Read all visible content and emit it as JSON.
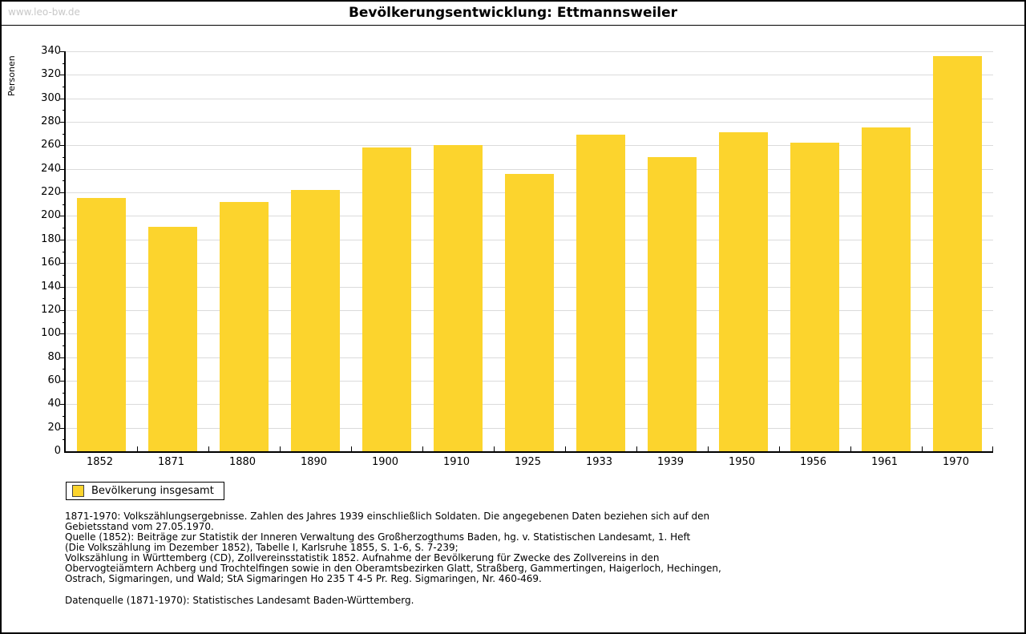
{
  "header": {
    "watermark": "www.leo-bw.de",
    "title": "Bevölkerungsentwicklung: Ettmannsweiler"
  },
  "chart_data": {
    "type": "bar",
    "title": "Bevölkerungsentwicklung: Ettmannsweiler",
    "ylabel": "Personen",
    "xlabel": "",
    "categories": [
      "1852",
      "1871",
      "1880",
      "1890",
      "1900",
      "1910",
      "1925",
      "1933",
      "1939",
      "1950",
      "1956",
      "1961",
      "1970"
    ],
    "values": [
      215,
      191,
      212,
      222,
      258,
      260,
      236,
      269,
      250,
      271,
      262,
      275,
      336
    ],
    "ylim": [
      0,
      340
    ],
    "ytick_step": 20,
    "y_minor_step": 10,
    "grid": true,
    "legend_position": "bottom-left",
    "bar_color": "#FCD42D",
    "gridline_color": "#dbdbdb",
    "legend": [
      "Bevölkerung insgesamt"
    ]
  },
  "legend": {
    "label": "Bevölkerung insgesamt",
    "swatch_color": "#FCD42D"
  },
  "footnotes": {
    "lines": [
      "1871-1970: Volkszählungsergebnisse. Zahlen des Jahres 1939 einschließlich Soldaten. Die angegebenen Daten beziehen sich auf den",
      "Gebietsstand vom 27.05.1970.",
      "Quelle (1852): Beiträge zur Statistik der Inneren Verwaltung des Großherzogthums Baden, hg. v. Statistischen Landesamt, 1. Heft",
      "(Die Volkszählung im Dezember 1852), Tabelle I, Karlsruhe 1855, S. 1-6, S. 7-239;",
      "Volkszählung in Württemberg (CD), Zollvereinsstatistik 1852. Aufnahme der Bevölkerung für Zwecke des Zollvereins in den",
      "Obervogteiämtern Achberg und Trochtelfingen sowie in den Oberamtsbezirken Glatt, Straßberg, Gammertingen, Haigerloch, Hechingen,",
      "Ostrach, Sigmaringen, und Wald; StA Sigmaringen Ho 235 T 4-5 Pr. Reg. Sigmaringen, Nr. 460-469."
    ],
    "datasource": "Datenquelle (1871-1970): Statistisches Landesamt Baden-Württemberg."
  }
}
